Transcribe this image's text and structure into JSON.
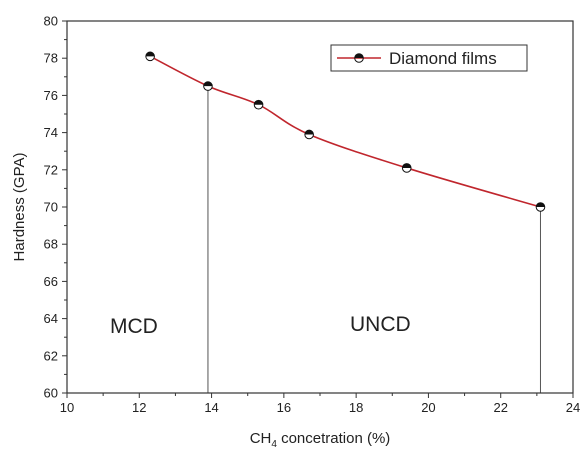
{
  "chart_data": {
    "type": "line",
    "xlabel_main": "CH",
    "xlabel_sub": "4",
    "xlabel_rest": " concetration (%)",
    "ylabel": "Hardness (GPA)",
    "xlim": [
      10,
      24
    ],
    "ylim": [
      60,
      80
    ],
    "x_ticks": [
      "10",
      "12",
      "14",
      "16",
      "18",
      "20",
      "22",
      "24"
    ],
    "y_ticks": [
      "60",
      "62",
      "64",
      "66",
      "68",
      "70",
      "72",
      "74",
      "76",
      "78",
      "80"
    ],
    "series": [
      {
        "name": "Diamond films",
        "color": "#c0262d",
        "marker": "half-filled-circle",
        "x": [
          12.3,
          13.9,
          15.3,
          16.7,
          19.4,
          23.1
        ],
        "y": [
          78.1,
          76.5,
          75.5,
          73.9,
          72.1,
          70.0
        ]
      }
    ],
    "region_labels": [
      "MCD",
      "UNCD"
    ],
    "drop_lines_at_x": [
      13.9,
      23.1
    ],
    "legend_position": "top-right",
    "grid": false
  }
}
